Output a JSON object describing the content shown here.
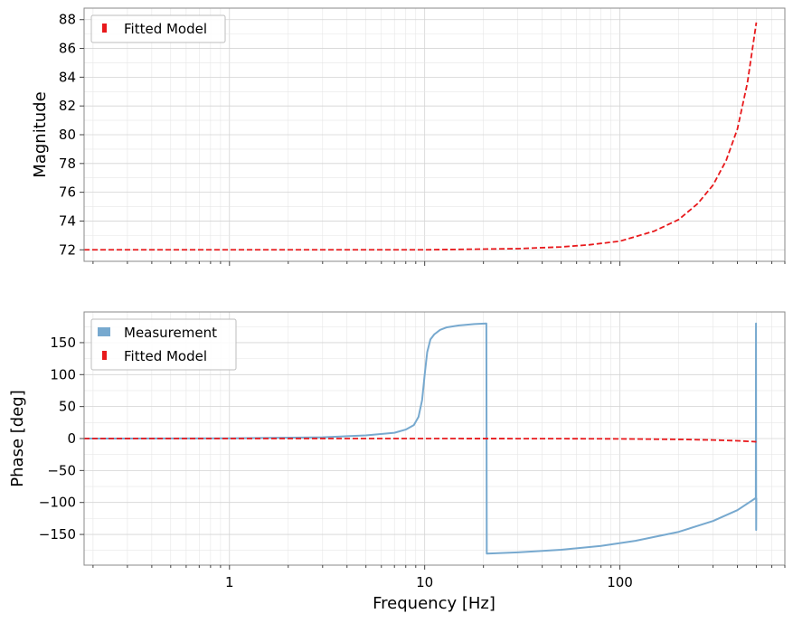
{
  "chart_data": [
    {
      "type": "line",
      "xscale": "log",
      "xlim": [
        0.18,
        700
      ],
      "ylim": [
        71.2,
        88.8
      ],
      "ylabel": "Magnitude",
      "xlabel": "",
      "yticks": [
        72,
        74,
        76,
        78,
        80,
        82,
        84,
        86,
        88
      ],
      "grid": true,
      "legend_position": "upper-left",
      "series": [
        {
          "name": "Fitted Model",
          "color": "#e8191c",
          "style": "dashed",
          "x": [
            0.18,
            1,
            5,
            10,
            20,
            30,
            50,
            70,
            100,
            150,
            200,
            250,
            300,
            350,
            400,
            450,
            500
          ],
          "y": [
            72.0,
            72.0,
            72.0,
            72.0,
            72.05,
            72.08,
            72.2,
            72.35,
            72.6,
            73.3,
            74.1,
            75.2,
            76.5,
            78.2,
            80.4,
            83.6,
            87.8
          ]
        }
      ]
    },
    {
      "type": "line",
      "xscale": "log",
      "xlim": [
        0.18,
        700
      ],
      "ylim": [
        -198,
        198
      ],
      "ylabel": "Phase [deg]",
      "xlabel": "Frequency [Hz]",
      "yticks": [
        -150,
        -100,
        -50,
        0,
        50,
        100,
        150
      ],
      "xticks": [
        1,
        10,
        100
      ],
      "xtick_labels": [
        "1",
        "10",
        "100"
      ],
      "grid": true,
      "legend_position": "upper-left",
      "series": [
        {
          "name": "Measurement",
          "color": "#77a9cf",
          "style": "solid",
          "x": [
            0.18,
            1,
            3,
            5,
            7,
            8,
            8.8,
            9.3,
            9.7,
            10,
            10.3,
            10.7,
            11.2,
            12,
            13,
            15,
            18,
            20.7,
            20.8,
            30,
            50,
            80,
            120,
            200,
            300,
            400,
            497,
            498,
            499,
            500
          ],
          "y": [
            0,
            0.3,
            2,
            5,
            9,
            14,
            21,
            34,
            60,
            100,
            135,
            155,
            163,
            170,
            174,
            177,
            179,
            180,
            -180,
            -178,
            -174,
            -168,
            -160,
            -146,
            -129,
            -112,
            -93,
            180,
            -143,
            -93
          ]
        },
        {
          "name": "Fitted Model",
          "color": "#e8191c",
          "style": "dashed",
          "x": [
            0.18,
            1,
            10,
            50,
            100,
            200,
            300,
            400,
            500
          ],
          "y": [
            0,
            0,
            0,
            -0.2,
            -0.5,
            -1.3,
            -2.3,
            -3.5,
            -5
          ]
        }
      ]
    }
  ],
  "legend_top": [
    "Fitted Model"
  ],
  "legend_bottom": [
    "Measurement",
    "Fitted Model"
  ]
}
